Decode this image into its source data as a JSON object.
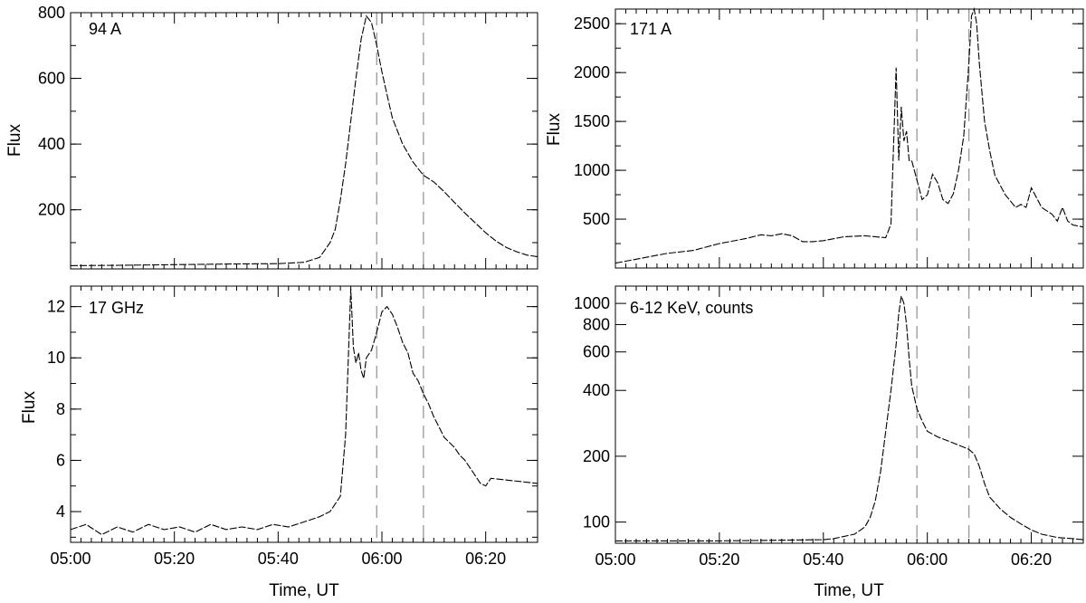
{
  "chart_data": [
    {
      "type": "line",
      "panel_label": "94 A",
      "ylabel": "Flux",
      "xlabel": "",
      "x_unit": "minutes after 05:00 UT",
      "xlim": [
        0,
        90
      ],
      "ylim": [
        20,
        800
      ],
      "yticks": [
        200,
        400,
        600,
        800
      ],
      "xticks": [],
      "markers": [
        59,
        68
      ],
      "series": [
        {
          "x": [
            0,
            10,
            20,
            30,
            40,
            45,
            48,
            50,
            51,
            52,
            53,
            54,
            55,
            56,
            57,
            58,
            59,
            60,
            61,
            62,
            64,
            66,
            68,
            70,
            72,
            74,
            76,
            78,
            80,
            82,
            84,
            86,
            88,
            90
          ],
          "values": [
            30,
            31,
            33,
            35,
            36,
            40,
            55,
            100,
            140,
            230,
            340,
            470,
            600,
            720,
            790,
            770,
            700,
            620,
            550,
            480,
            400,
            345,
            305,
            285,
            255,
            222,
            190,
            160,
            130,
            105,
            85,
            72,
            62,
            57
          ]
        }
      ]
    },
    {
      "type": "line",
      "panel_label": "171 A",
      "ylabel": "Flux",
      "xlabel": "",
      "xlim": [
        0,
        90
      ],
      "ylim": [
        0,
        2650
      ],
      "yticks": [
        500,
        1000,
        1500,
        2000,
        2500
      ],
      "xticks": [],
      "markers": [
        58,
        68
      ],
      "series": [
        {
          "x": [
            0,
            5,
            10,
            15,
            20,
            25,
            28,
            30,
            32,
            34,
            36,
            38,
            40,
            44,
            48,
            52,
            53,
            54,
            54.5,
            55,
            55.5,
            56,
            56.5,
            57,
            58,
            59,
            60,
            61,
            62,
            63,
            64,
            65,
            66,
            67,
            68,
            68.5,
            69,
            69.5,
            70,
            71,
            72,
            73,
            75,
            77,
            78,
            79,
            80,
            81,
            82,
            84,
            85,
            86,
            87,
            88,
            90
          ],
          "values": [
            50,
            100,
            150,
            180,
            250,
            300,
            340,
            330,
            350,
            330,
            270,
            270,
            280,
            320,
            330,
            310,
            450,
            2050,
            1100,
            1650,
            1300,
            1400,
            1100,
            1100,
            900,
            700,
            750,
            960,
            870,
            700,
            660,
            760,
            1000,
            1350,
            2100,
            2580,
            2650,
            2500,
            2100,
            1500,
            1200,
            950,
            750,
            620,
            650,
            620,
            820,
            720,
            620,
            550,
            480,
            620,
            480,
            440,
            420
          ]
        }
      ]
    },
    {
      "type": "line",
      "panel_label": "17 GHz",
      "ylabel": "Flux",
      "xlabel": "Time, UT",
      "xlim": [
        0,
        90
      ],
      "ylim": [
        2.8,
        12.8
      ],
      "yticks": [
        4,
        6,
        8,
        10,
        12
      ],
      "xticks": [
        "05:00",
        "05:20",
        "05:40",
        "06:00",
        "06:20"
      ],
      "xtick_values": [
        0,
        20,
        40,
        60,
        80
      ],
      "markers": [
        59,
        68
      ],
      "series": [
        {
          "x": [
            0,
            3,
            6,
            9,
            12,
            15,
            18,
            21,
            24,
            27,
            30,
            33,
            36,
            39,
            42,
            45,
            48,
            50,
            52,
            53,
            54,
            54.5,
            55,
            55.5,
            56,
            56.5,
            57,
            58,
            59,
            60,
            61,
            62,
            63,
            64,
            65,
            66,
            67,
            68,
            69,
            70,
            71,
            72,
            73,
            74,
            75,
            76,
            77,
            78,
            79,
            80,
            81,
            90
          ],
          "values": [
            3.3,
            3.5,
            3.1,
            3.4,
            3.2,
            3.5,
            3.3,
            3.4,
            3.2,
            3.5,
            3.3,
            3.4,
            3.3,
            3.5,
            3.4,
            3.6,
            3.8,
            4.0,
            4.6,
            7.0,
            12.7,
            10.4,
            9.8,
            10.2,
            9.5,
            9.2,
            10.0,
            10.3,
            11.0,
            11.8,
            12.0,
            11.7,
            11.2,
            10.6,
            10.2,
            9.4,
            9.1,
            8.6,
            8.2,
            7.7,
            7.3,
            6.9,
            6.7,
            6.5,
            6.2,
            6.0,
            5.7,
            5.4,
            5.1,
            5.0,
            5.3,
            5.1
          ]
        }
      ]
    },
    {
      "type": "line",
      "panel_label": "6-12 KeV, counts",
      "ylabel": "",
      "xlabel": "Time, UT",
      "y_scale": "log",
      "xlim": [
        0,
        90
      ],
      "ylim": [
        80,
        1200
      ],
      "yticks": [
        100,
        200,
        400,
        600,
        800,
        1000
      ],
      "xticks": [
        "05:00",
        "05:20",
        "05:40",
        "06:00",
        "06:20"
      ],
      "xtick_values": [
        0,
        20,
        40,
        60,
        80
      ],
      "markers": [
        58,
        68
      ],
      "series": [
        {
          "x": [
            0,
            20,
            40,
            42,
            44,
            46,
            48,
            49,
            50,
            51,
            52,
            53,
            54,
            54.5,
            55,
            55.5,
            56,
            56.5,
            57,
            58,
            59,
            60,
            62,
            64,
            66,
            68,
            69,
            70,
            71,
            72,
            74,
            76,
            78,
            80,
            82,
            85,
            88,
            90
          ],
          "values": [
            82,
            82,
            83,
            84,
            86,
            88,
            95,
            105,
            125,
            170,
            260,
            400,
            650,
            900,
            1080,
            1000,
            800,
            560,
            420,
            330,
            290,
            260,
            245,
            235,
            225,
            215,
            205,
            180,
            150,
            130,
            115,
            105,
            98,
            92,
            88,
            85,
            84,
            83
          ]
        }
      ]
    }
  ]
}
